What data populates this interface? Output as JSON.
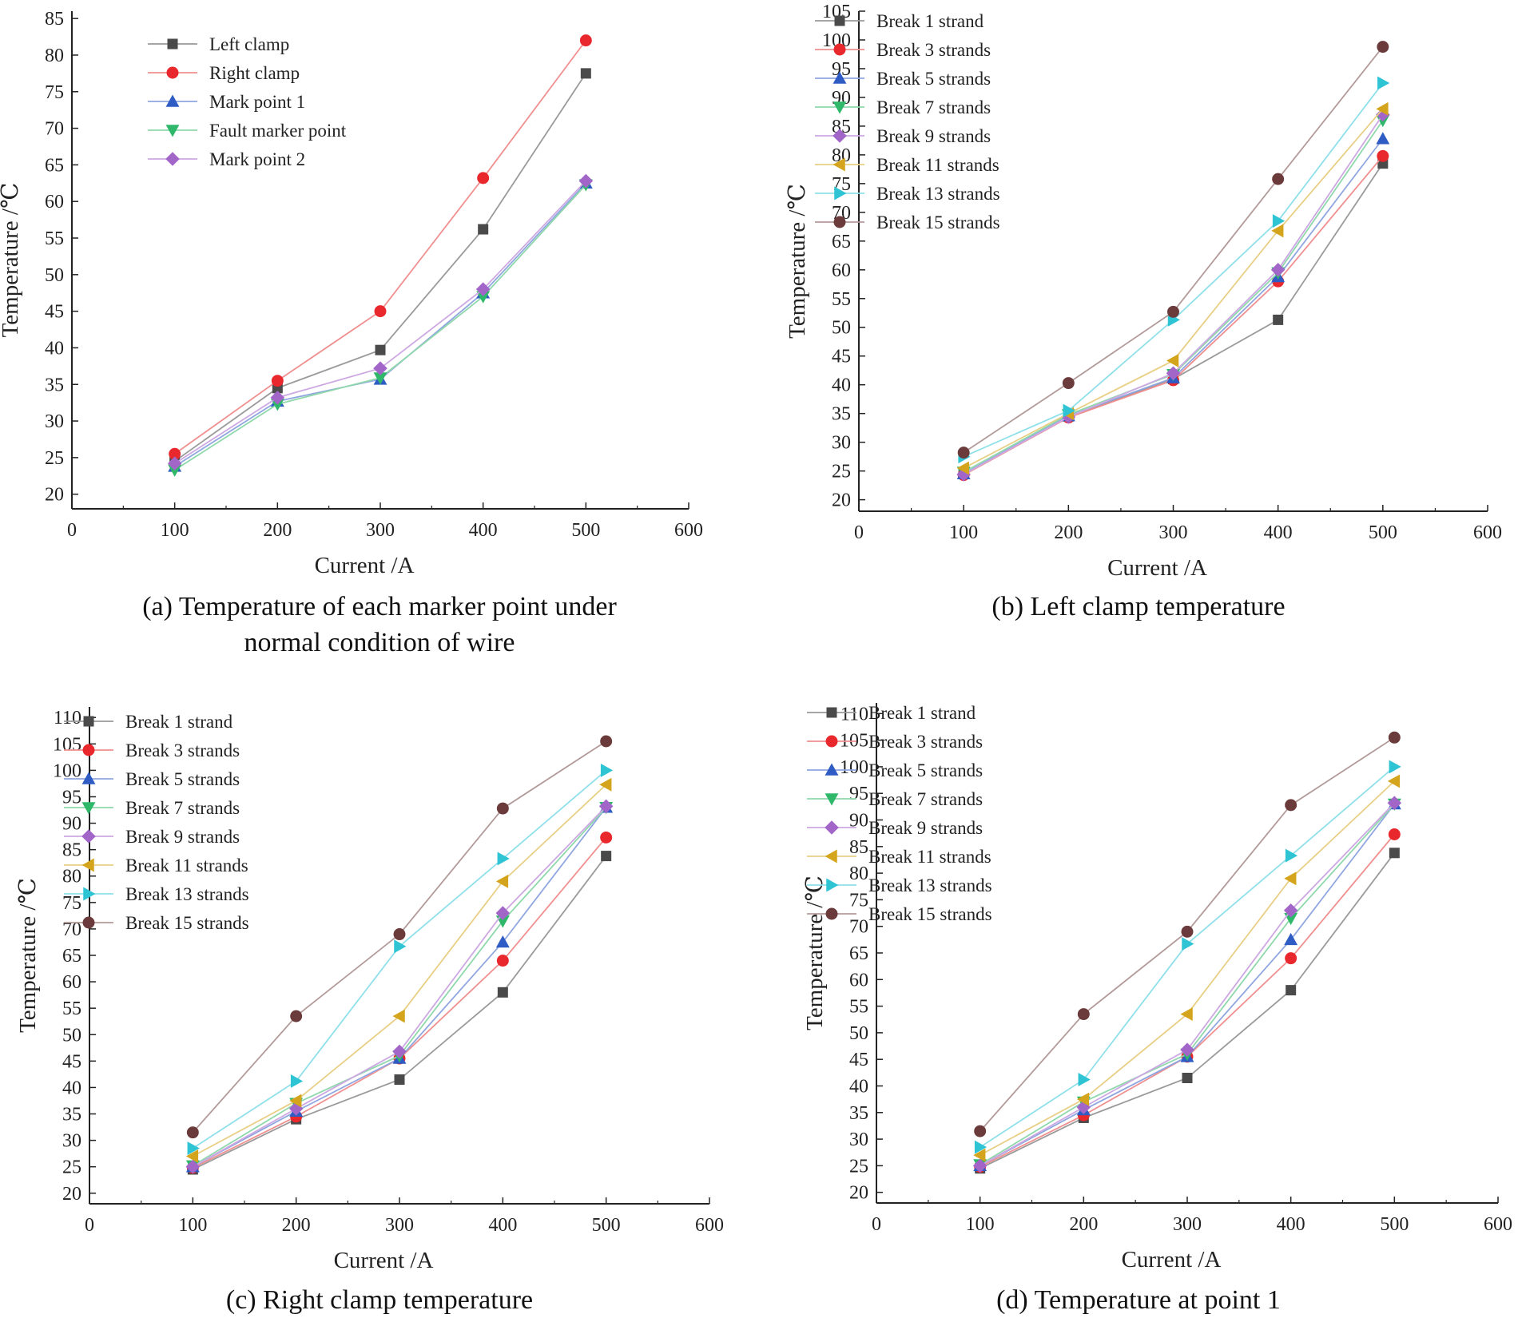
{
  "chart_data": [
    {
      "type": "line",
      "panel": "a",
      "caption": [
        "(a) Temperature of each marker point under",
        "normal condition of wire"
      ],
      "xlabel": "Current /A",
      "ylabel": "Temperature /℃",
      "xlim": [
        0,
        600
      ],
      "ylim": [
        18,
        86
      ],
      "xticks": [
        0,
        100,
        200,
        300,
        400,
        500,
        600
      ],
      "yticks": [
        20,
        25,
        30,
        35,
        40,
        45,
        50,
        55,
        60,
        65,
        70,
        75,
        80,
        85
      ],
      "legend_position": "top-left",
      "x": [
        100,
        200,
        300,
        400,
        500
      ],
      "series": [
        {
          "name": "Left clamp",
          "color": "#4a4a4a",
          "line": "#9a9a9a",
          "marker": "square",
          "values": [
            24.5,
            34.5,
            39.7,
            56.2,
            77.5
          ]
        },
        {
          "name": "Right clamp",
          "color": "#e8282c",
          "line": "#f08f8f",
          "marker": "circle",
          "values": [
            25.5,
            35.5,
            45.0,
            63.2,
            82.0
          ]
        },
        {
          "name": "Mark point 1",
          "color": "#2e5cc4",
          "line": "#90a6e0",
          "marker": "triangle-up",
          "values": [
            23.8,
            32.7,
            35.7,
            47.5,
            62.5
          ]
        },
        {
          "name": "Fault marker point",
          "color": "#2fb86a",
          "line": "#8fd8ac",
          "marker": "triangle-down",
          "values": [
            23.3,
            32.3,
            35.9,
            47.0,
            62.3
          ]
        },
        {
          "name": "Mark point 2",
          "color": "#a266c9",
          "line": "#cda8e2",
          "marker": "diamond",
          "values": [
            24.2,
            33.2,
            37.2,
            48.0,
            62.8
          ]
        }
      ]
    },
    {
      "type": "line",
      "panel": "b",
      "caption": [
        "(b) Left clamp temperature"
      ],
      "xlabel": "Current /A",
      "ylabel": "Temperature /℃",
      "xlim": [
        0,
        600
      ],
      "ylim": [
        18,
        105
      ],
      "xticks": [
        0,
        100,
        200,
        300,
        400,
        500,
        600
      ],
      "yticks": [
        20,
        25,
        30,
        35,
        40,
        45,
        50,
        55,
        60,
        65,
        70,
        75,
        80,
        85,
        90,
        95,
        100,
        105
      ],
      "legend_position": "top-left",
      "x": [
        100,
        200,
        300,
        400,
        500
      ],
      "series": [
        {
          "name": "Break 1 strand",
          "color": "#4a4a4a",
          "line": "#9a9a9a",
          "marker": "square",
          "values": [
            24.5,
            34.5,
            41.0,
            51.3,
            78.5
          ]
        },
        {
          "name": "Break 3 strands",
          "color": "#e8282c",
          "line": "#f08f8f",
          "marker": "circle",
          "values": [
            24.3,
            34.3,
            40.8,
            58.0,
            79.8
          ]
        },
        {
          "name": "Break 5 strands",
          "color": "#2e5cc4",
          "line": "#90a6e0",
          "marker": "triangle-up",
          "values": [
            24.5,
            34.6,
            41.2,
            58.8,
            82.8
          ]
        },
        {
          "name": "Break 7 strands",
          "color": "#2fb86a",
          "line": "#8fd8ac",
          "marker": "triangle-down",
          "values": [
            24.8,
            34.8,
            41.8,
            59.5,
            86.0
          ]
        },
        {
          "name": "Break 9 strands",
          "color": "#a266c9",
          "line": "#cda8e2",
          "marker": "diamond",
          "values": [
            24.4,
            34.4,
            42.0,
            60.0,
            87.0
          ]
        },
        {
          "name": "Break 11 strands",
          "color": "#d4a51c",
          "line": "#e8cf85",
          "marker": "triangle-left",
          "values": [
            25.5,
            35.0,
            44.2,
            66.8,
            88.0
          ]
        },
        {
          "name": "Break 13 strands",
          "color": "#2ec4d4",
          "line": "#8fe0ea",
          "marker": "triangle-right",
          "values": [
            27.5,
            35.5,
            51.3,
            68.5,
            92.5
          ]
        },
        {
          "name": "Break 15 strands",
          "color": "#6b3a3a",
          "line": "#b39a9a",
          "marker": "circle",
          "values": [
            28.2,
            40.3,
            52.7,
            75.8,
            98.8
          ]
        }
      ]
    },
    {
      "type": "line",
      "panel": "c",
      "caption": [
        "(c) Right clamp temperature"
      ],
      "xlabel": "Current /A",
      "ylabel": "Temperature /℃",
      "xlim": [
        0,
        600
      ],
      "ylim": [
        18,
        112
      ],
      "xticks": [
        0,
        100,
        200,
        300,
        400,
        500,
        600
      ],
      "yticks": [
        20,
        25,
        30,
        35,
        40,
        45,
        50,
        55,
        60,
        65,
        70,
        75,
        80,
        85,
        90,
        95,
        100,
        105,
        110
      ],
      "legend_position": "top-left",
      "x": [
        100,
        200,
        300,
        400,
        500
      ],
      "series": [
        {
          "name": "Break 1 strand",
          "color": "#4a4a4a",
          "line": "#9a9a9a",
          "marker": "square",
          "values": [
            24.5,
            34.0,
            41.5,
            58.0,
            83.8
          ]
        },
        {
          "name": "Break 3 strands",
          "color": "#e8282c",
          "line": "#f08f8f",
          "marker": "circle",
          "values": [
            24.8,
            34.5,
            45.5,
            64.0,
            87.3
          ]
        },
        {
          "name": "Break 5 strands",
          "color": "#2e5cc4",
          "line": "#90a6e0",
          "marker": "triangle-up",
          "values": [
            25.0,
            35.5,
            45.5,
            67.5,
            93.0
          ]
        },
        {
          "name": "Break 7 strands",
          "color": "#2fb86a",
          "line": "#8fd8ac",
          "marker": "triangle-down",
          "values": [
            25.2,
            37.0,
            46.0,
            71.5,
            93.0
          ]
        },
        {
          "name": "Break 9 strands",
          "color": "#a266c9",
          "line": "#cda8e2",
          "marker": "diamond",
          "values": [
            25.0,
            36.0,
            46.8,
            73.0,
            93.2
          ]
        },
        {
          "name": "Break 11 strands",
          "color": "#d4a51c",
          "line": "#e8cf85",
          "marker": "triangle-left",
          "values": [
            27.0,
            37.5,
            53.5,
            79.0,
            97.3
          ]
        },
        {
          "name": "Break 13 strands",
          "color": "#2ec4d4",
          "line": "#8fe0ea",
          "marker": "triangle-right",
          "values": [
            28.5,
            41.2,
            66.7,
            83.3,
            100.0
          ]
        },
        {
          "name": "Break 15 strands",
          "color": "#6b3a3a",
          "line": "#b39a9a",
          "marker": "circle",
          "values": [
            31.5,
            53.5,
            69.0,
            92.8,
            105.5
          ]
        }
      ]
    },
    {
      "type": "line",
      "panel": "d",
      "caption": [
        "(d) Temperature at point 1"
      ],
      "xlabel": "Current /A",
      "ylabel": "Temperature /℃",
      "xlim": [
        0,
        600
      ],
      "ylim": [
        18,
        112
      ],
      "xticks": [
        0,
        100,
        200,
        300,
        400,
        500,
        600
      ],
      "yticks": [
        20,
        25,
        30,
        35,
        40,
        45,
        50,
        55,
        60,
        65,
        70,
        75,
        80,
        85,
        90,
        95,
        100,
        105,
        110
      ],
      "legend_position": "top-left",
      "x": [
        100,
        200,
        300,
        400,
        500
      ],
      "series": [
        {
          "name": "Break 1 strand",
          "color": "#4a4a4a",
          "line": "#9a9a9a",
          "marker": "square",
          "values": [
            24.5,
            34.0,
            41.5,
            58.0,
            83.8
          ]
        },
        {
          "name": "Break 3 strands",
          "color": "#e8282c",
          "line": "#f08f8f",
          "marker": "circle",
          "values": [
            24.8,
            34.5,
            45.5,
            64.0,
            87.3
          ]
        },
        {
          "name": "Break 5 strands",
          "color": "#2e5cc4",
          "line": "#90a6e0",
          "marker": "triangle-up",
          "values": [
            25.0,
            35.5,
            45.5,
            67.5,
            93.0
          ]
        },
        {
          "name": "Break 7 strands",
          "color": "#2fb86a",
          "line": "#8fd8ac",
          "marker": "triangle-down",
          "values": [
            25.2,
            37.0,
            46.0,
            71.5,
            93.0
          ]
        },
        {
          "name": "Break 9 strands",
          "color": "#a266c9",
          "line": "#cda8e2",
          "marker": "diamond",
          "values": [
            25.0,
            36.0,
            46.8,
            73.0,
            93.2
          ]
        },
        {
          "name": "Break 11 strands",
          "color": "#d4a51c",
          "line": "#e8cf85",
          "marker": "triangle-left",
          "values": [
            27.0,
            37.5,
            53.5,
            79.0,
            97.3
          ]
        },
        {
          "name": "Break 13 strands",
          "color": "#2ec4d4",
          "line": "#8fe0ea",
          "marker": "triangle-right",
          "values": [
            28.5,
            41.2,
            66.7,
            83.3,
            100.0
          ]
        },
        {
          "name": "Break 15 strands",
          "color": "#6b3a3a",
          "line": "#b39a9a",
          "marker": "circle",
          "values": [
            31.5,
            53.5,
            69.0,
            92.8,
            105.5
          ]
        }
      ]
    }
  ]
}
